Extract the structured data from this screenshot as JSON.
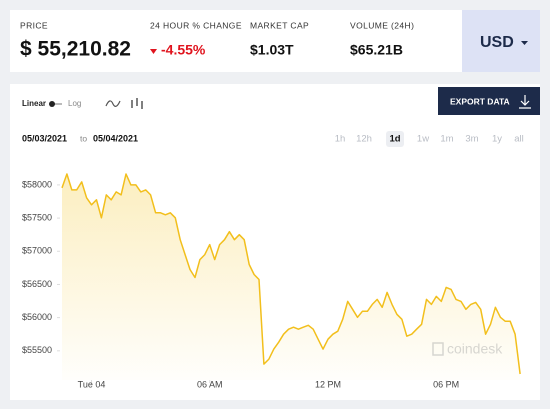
{
  "header": {
    "price": {
      "label": "PRICE",
      "value": "$ 55,210.82"
    },
    "change": {
      "label": "24 HOUR % CHANGE",
      "value": "-4.55%"
    },
    "market_cap": {
      "label": "MARKET CAP",
      "value": "$1.03T"
    },
    "volume": {
      "label": "VOLUME (24H)",
      "value": "$65.21B"
    },
    "currency": "USD"
  },
  "controls": {
    "linear": "Linear",
    "log": "Log",
    "export": "EXPORT DATA",
    "date_from": "05/03/2021",
    "date_sep": "to",
    "date_to": "05/04/2021",
    "ranges": [
      "1h",
      "12h",
      "1d",
      "1w",
      "1m",
      "3m",
      "1y",
      "all"
    ],
    "active_range": 2
  },
  "chart_data": {
    "type": "line",
    "color": "#f2bf1c",
    "x": [
      -1.5,
      -1.25,
      -1,
      -0.75,
      -0.5,
      -0.25,
      0,
      0.25,
      0.5,
      0.75,
      1,
      1.25,
      1.5,
      1.75,
      2,
      2.25,
      2.5,
      2.75,
      3,
      3.25,
      3.5,
      3.75,
      4,
      4.25,
      4.5,
      4.75,
      5,
      5.25,
      5.5,
      5.75,
      6,
      6.25,
      6.5,
      6.75,
      7,
      7.25,
      7.5,
      7.75,
      8,
      8.25,
      8.5,
      8.75,
      9,
      9.25,
      9.5,
      9.75,
      10,
      10.25,
      10.5,
      10.75,
      11,
      11.25,
      11.5,
      11.75,
      12,
      12.25,
      12.5,
      12.75,
      13,
      13.25,
      13.5,
      13.75,
      14,
      14.25,
      14.5,
      14.75,
      15,
      15.25,
      15.5,
      15.75,
      16,
      16.25,
      16.5,
      16.75,
      17,
      17.25,
      17.5,
      17.75,
      18,
      18.25,
      18.5,
      18.75,
      19,
      19.25,
      19.5,
      19.75,
      20,
      20.25,
      20.5,
      20.75,
      21,
      21.25,
      21.5,
      21.75
    ],
    "values": [
      57955,
      58165,
      57925,
      57925,
      58045,
      57805,
      57700,
      57775,
      57505,
      57850,
      57775,
      57895,
      57850,
      58165,
      58000,
      58000,
      57895,
      57925,
      57850,
      57580,
      57580,
      57550,
      57580,
      57505,
      57175,
      56950,
      56725,
      56605,
      56875,
      56950,
      57100,
      56875,
      57100,
      57175,
      57295,
      57175,
      57250,
      57175,
      56800,
      56650,
      56575,
      55300,
      55375,
      55525,
      55630,
      55750,
      55825,
      55855,
      55825,
      55855,
      55885,
      55825,
      55675,
      55525,
      55675,
      55750,
      55795,
      55975,
      56245,
      56125,
      56005,
      56095,
      56095,
      56200,
      56275,
      56155,
      56380,
      56200,
      56050,
      55975,
      55720,
      55750,
      55825,
      55900,
      56275,
      56200,
      56320,
      56245,
      56455,
      56425,
      56275,
      56245,
      56125,
      56200,
      56230,
      56125,
      55750,
      55900,
      56155,
      56005,
      55945,
      55945,
      55750,
      55150
    ],
    "xlim": [
      -1.6,
      22.0
    ],
    "ylim": [
      55060,
      58300
    ],
    "xticks": [
      {
        "value": 0,
        "label": "Tue 04"
      },
      {
        "value": 6,
        "label": "06 AM"
      },
      {
        "value": 12,
        "label": "12 PM"
      },
      {
        "value": 18,
        "label": "06 PM"
      }
    ],
    "yticks": [
      {
        "value": 55500,
        "label": "$55500"
      },
      {
        "value": 56000,
        "label": "$56000"
      },
      {
        "value": 56500,
        "label": "$56500"
      },
      {
        "value": 57000,
        "label": "$57000"
      },
      {
        "value": 57500,
        "label": "$57500"
      },
      {
        "value": 58000,
        "label": "$58000"
      }
    ],
    "watermark": "coindesk"
  }
}
